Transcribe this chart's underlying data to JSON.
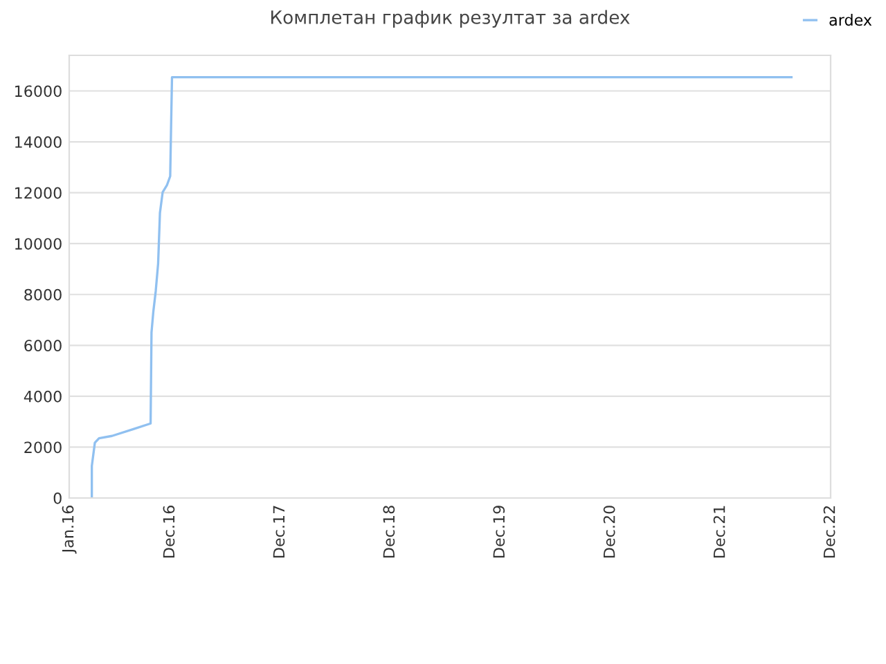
{
  "chart_data": {
    "type": "line",
    "title": "Комплетан график резултат за ardex",
    "x": [
      "2016-03-16",
      "2016-03-16",
      "2016-03-22",
      "2016-03-26",
      "2016-04-09",
      "2016-05-22",
      "2016-08-01",
      "2016-09-27",
      "2016-09-30",
      "2016-10-06",
      "2016-10-14",
      "2016-10-22",
      "2016-10-28",
      "2016-11-06",
      "2016-11-20",
      "2016-12-01",
      "2016-12-04",
      "2016-12-07",
      "2022-07-24"
    ],
    "series": [
      {
        "name": "ardex",
        "color": "#90c0f0",
        "values": [
          0,
          1260,
          1800,
          2170,
          2350,
          2440,
          2710,
          2930,
          6510,
          7320,
          8130,
          9220,
          11210,
          12020,
          12290,
          12650,
          14640,
          16540,
          16540
        ]
      }
    ],
    "xlim": [
      "2016-01-01",
      "2022-12-01"
    ],
    "xticks": [
      {
        "value": "2016-01-01",
        "label": "Jan.16"
      },
      {
        "value": "2016-12-01",
        "label": "Dec.16"
      },
      {
        "value": "2017-12-01",
        "label": "Dec.17"
      },
      {
        "value": "2018-12-01",
        "label": "Dec.18"
      },
      {
        "value": "2019-12-01",
        "label": "Dec.19"
      },
      {
        "value": "2020-12-01",
        "label": "Dec.20"
      },
      {
        "value": "2021-12-01",
        "label": "Dec.21"
      },
      {
        "value": "2022-12-01",
        "label": "Dec.22"
      }
    ],
    "ylim": [
      0,
      17400
    ],
    "yticks": [
      0,
      2000,
      4000,
      6000,
      8000,
      10000,
      12000,
      14000,
      16000
    ],
    "grid": "y",
    "legend": "top right",
    "marker": "none",
    "line_style": "solid"
  }
}
